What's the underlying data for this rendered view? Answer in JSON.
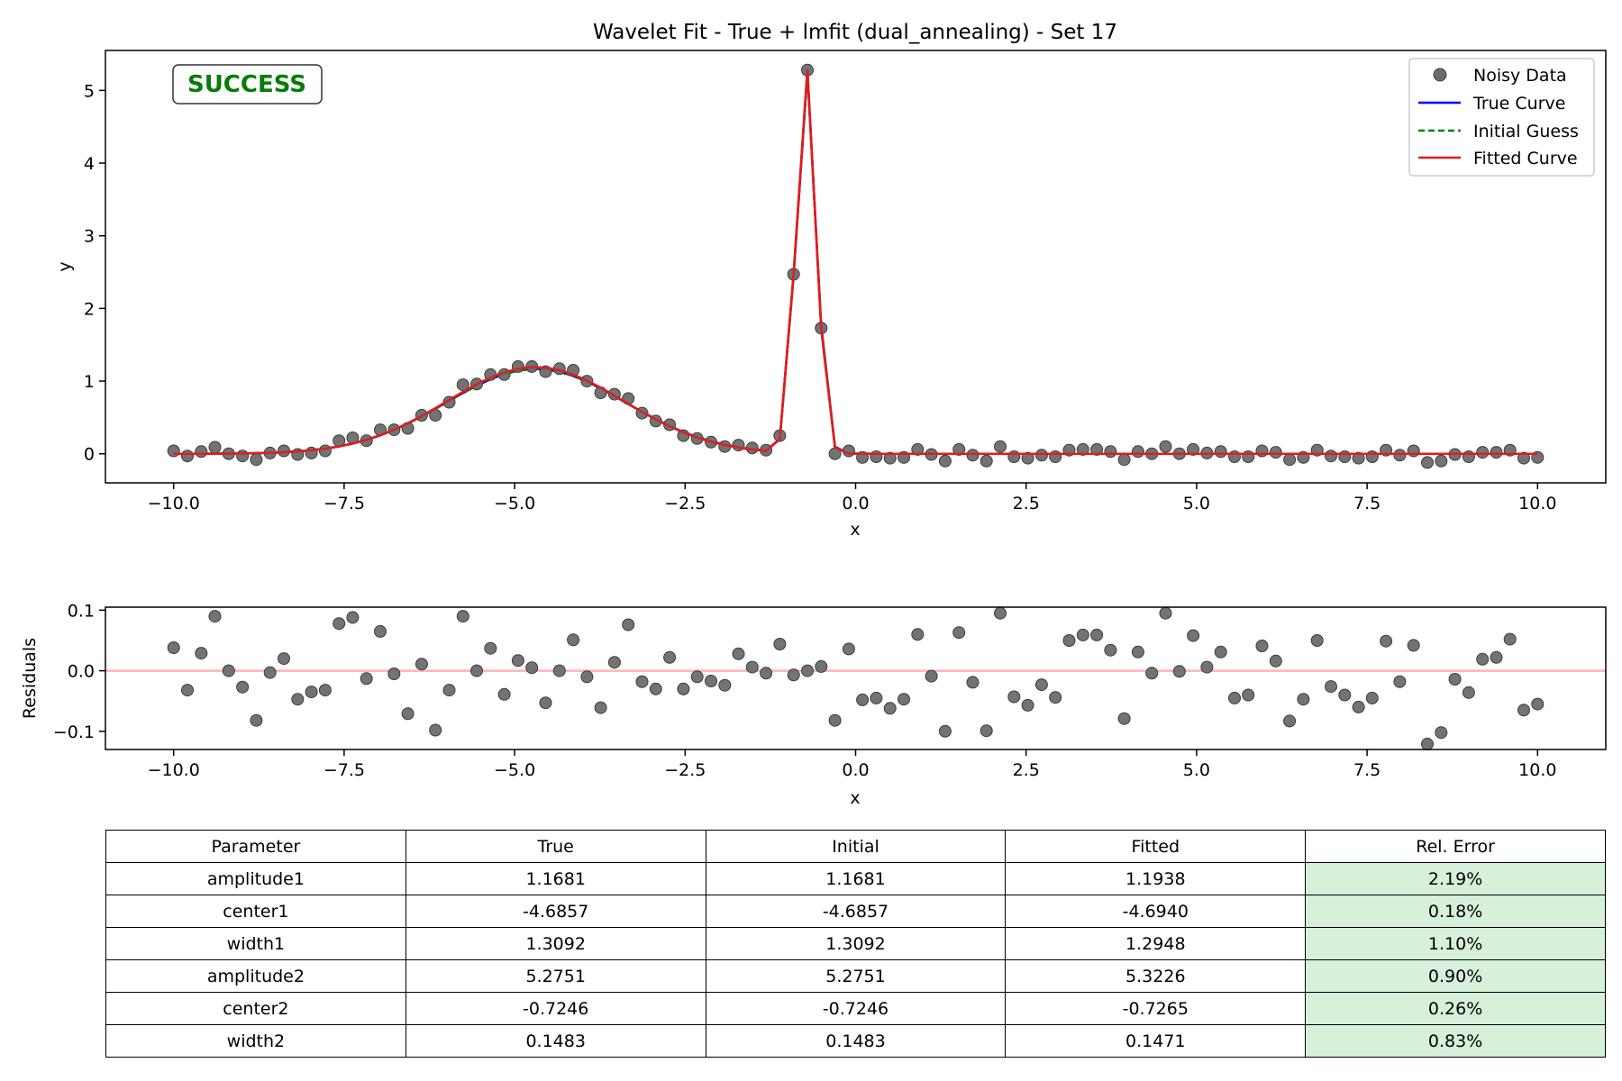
{
  "colors": {
    "noisy_point": "#6b6b6b",
    "true_curve": "#0000ff",
    "initial_guess": "#008000",
    "fitted_curve": "#e41a1c",
    "success": "#0a7a0a",
    "zero_line": "#ffb3b3",
    "rel_error_cell": "#d6f0da"
  },
  "status_badge": "SUCCESS",
  "chart_data": [
    {
      "type": "line",
      "title": "Wavelet Fit - True + lmfit (dual_annealing) - Set 17",
      "xlabel": "x",
      "ylabel": "y",
      "xlim": [
        -11.0,
        11.0
      ],
      "ylim": [
        -0.4,
        5.55
      ],
      "xticks": [
        -10.0,
        -7.5,
        -5.0,
        -2.5,
        0.0,
        2.5,
        5.0,
        7.5,
        10.0
      ],
      "xtick_labels": [
        "−10.0",
        "−7.5",
        "−5.0",
        "−2.5",
        "0.0",
        "2.5",
        "5.0",
        "7.5",
        "10.0"
      ],
      "yticks": [
        0,
        1,
        2,
        3,
        4,
        5
      ],
      "ytick_labels": [
        "0",
        "1",
        "2",
        "3",
        "4",
        "5"
      ],
      "legend_placement": "top-right",
      "legend": [
        "Noisy Data",
        "True Curve",
        "Initial Guess",
        "Fitted Curve"
      ],
      "series": [
        {
          "name": "Noisy Data",
          "kind": "scatter",
          "x_start": -10.0,
          "x_end": 10.0,
          "n": 100,
          "y": [
            0.04,
            -0.03,
            0.03,
            0.09,
            0.0,
            -0.03,
            -0.08,
            0.01,
            0.04,
            -0.01,
            0.01,
            0.04,
            0.18,
            0.22,
            0.18,
            0.33,
            0.33,
            0.35,
            0.53,
            0.53,
            0.71,
            0.95,
            0.96,
            1.09,
            1.09,
            1.2,
            1.2,
            1.13,
            1.17,
            1.15,
            1.0,
            0.84,
            0.82,
            0.76,
            0.56,
            0.45,
            0.4,
            0.25,
            0.21,
            0.16,
            0.1,
            0.12,
            0.08,
            0.05,
            0.25,
            2.47,
            5.28,
            1.73,
            0.0,
            0.04,
            -0.05,
            -0.04,
            -0.06,
            -0.05,
            0.06,
            -0.01,
            -0.1,
            0.06,
            -0.02,
            -0.1,
            0.1,
            -0.04,
            -0.06,
            -0.02,
            -0.04,
            0.05,
            0.06,
            0.06,
            0.03,
            -0.08,
            0.03,
            0.0,
            0.1,
            0.0,
            0.06,
            0.01,
            0.03,
            -0.04,
            -0.04,
            0.04,
            0.02,
            -0.08,
            -0.05,
            0.05,
            -0.03,
            -0.04,
            -0.06,
            -0.04,
            0.05,
            -0.02,
            0.04,
            -0.12,
            -0.1,
            -0.01,
            -0.04,
            0.02,
            0.02,
            0.05,
            -0.06,
            -0.05
          ]
        },
        {
          "name": "True Curve",
          "kind": "model",
          "amplitude1": 1.1681,
          "center1": -4.6857,
          "width1": 1.3092,
          "amplitude2": 5.2751,
          "center2": -0.7246,
          "width2": 0.1483
        },
        {
          "name": "Initial Guess",
          "kind": "model",
          "amplitude1": 1.1681,
          "center1": -4.6857,
          "width1": 1.3092,
          "amplitude2": 5.2751,
          "center2": -0.7246,
          "width2": 0.1483
        },
        {
          "name": "Fitted Curve",
          "kind": "model",
          "amplitude1": 1.1938,
          "center1": -4.694,
          "width1": 1.2948,
          "amplitude2": 5.3226,
          "center2": -0.7265,
          "width2": 0.1471
        }
      ]
    },
    {
      "type": "scatter",
      "xlabel": "x",
      "ylabel": "Residuals",
      "xlim": [
        -11.0,
        11.0
      ],
      "ylim": [
        -0.13,
        0.105
      ],
      "xticks": [
        -10.0,
        -7.5,
        -5.0,
        -2.5,
        0.0,
        2.5,
        5.0,
        7.5,
        10.0
      ],
      "xtick_labels": [
        "−10.0",
        "−7.5",
        "−5.0",
        "−2.5",
        "0.0",
        "2.5",
        "5.0",
        "7.5",
        "10.0"
      ],
      "yticks": [
        -0.1,
        0.0,
        0.1
      ],
      "ytick_labels": [
        "−0.1",
        "0.0",
        "0.1"
      ],
      "zero_line": 0.0,
      "x_start": -10.0,
      "x_end": 10.0,
      "n": 100,
      "values": [
        0.038,
        -0.032,
        0.029,
        0.09,
        0.0,
        -0.027,
        -0.082,
        -0.003,
        0.02,
        -0.047,
        -0.035,
        -0.032,
        0.078,
        0.088,
        -0.013,
        0.065,
        -0.005,
        -0.071,
        0.011,
        -0.098,
        -0.032,
        0.09,
        0.0,
        0.037,
        -0.039,
        0.017,
        0.005,
        -0.053,
        0.0,
        0.051,
        -0.01,
        -0.061,
        0.014,
        0.076,
        -0.018,
        -0.03,
        0.022,
        -0.03,
        -0.01,
        -0.017,
        -0.024,
        0.028,
        0.006,
        -0.004,
        0.044,
        -0.007,
        0.0,
        0.007,
        -0.082,
        0.036,
        -0.048,
        -0.045,
        -0.062,
        -0.047,
        0.06,
        -0.009,
        -0.1,
        0.063,
        -0.019,
        -0.099,
        0.095,
        -0.043,
        -0.057,
        -0.023,
        -0.044,
        0.05,
        0.059,
        0.059,
        0.034,
        -0.079,
        0.031,
        -0.004,
        0.095,
        -0.001,
        0.058,
        0.006,
        0.031,
        -0.045,
        -0.04,
        0.041,
        0.016,
        -0.083,
        -0.047,
        0.05,
        -0.026,
        -0.04,
        -0.06,
        -0.045,
        0.049,
        -0.018,
        0.042,
        -0.121,
        -0.102,
        -0.014,
        -0.036,
        0.019,
        0.022,
        0.052,
        -0.065,
        -0.055
      ]
    },
    {
      "type": "table",
      "columns": [
        "Parameter",
        "True",
        "Initial",
        "Fitted",
        "Rel. Error"
      ],
      "rows": [
        [
          "amplitude1",
          "1.1681",
          "1.1681",
          "1.1938",
          "2.19%"
        ],
        [
          "center1",
          "-4.6857",
          "-4.6857",
          "-4.6940",
          "0.18%"
        ],
        [
          "width1",
          "1.3092",
          "1.3092",
          "1.2948",
          "1.10%"
        ],
        [
          "amplitude2",
          "5.2751",
          "5.2751",
          "5.3226",
          "0.90%"
        ],
        [
          "center2",
          "-0.7246",
          "-0.7246",
          "-0.7265",
          "0.26%"
        ],
        [
          "width2",
          "0.1483",
          "0.1483",
          "0.1471",
          "0.83%"
        ]
      ]
    }
  ]
}
